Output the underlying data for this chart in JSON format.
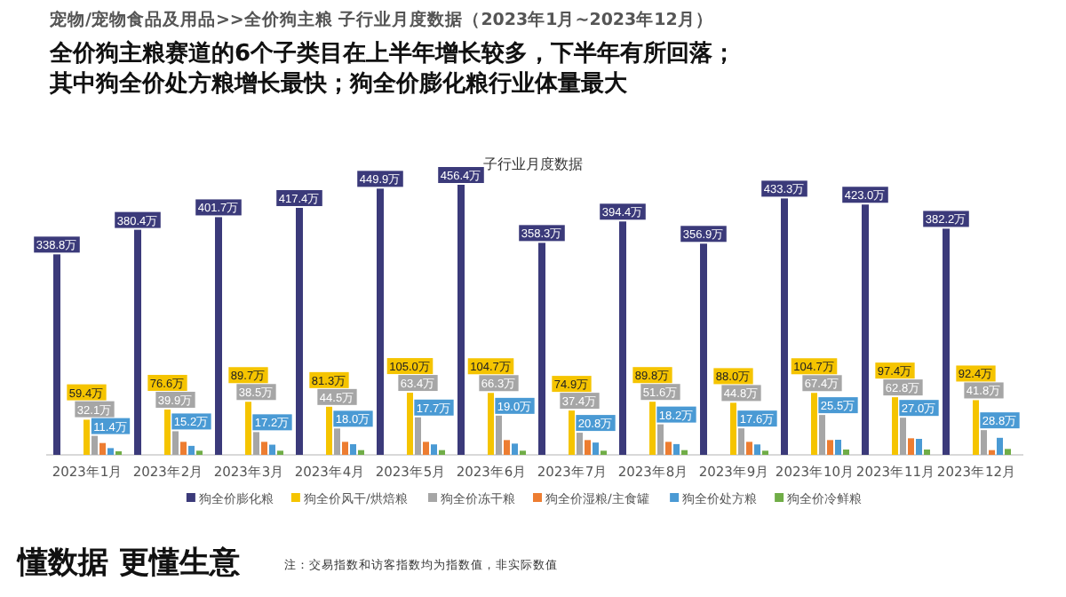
{
  "chart_data": {
    "type": "bar",
    "title": "全价狗主粮赛道的6个子类目在上半年增长较多，下半年有所回落；其中狗全价处方粮增长最快；狗全价膨化粮行业体量最大",
    "subtitle": "子行业月度数据",
    "annotations": [
      "宠物/宠物食品及用品>>全价狗主粮  子行业月度数据（2023年1月~2023年12月）",
      "懂数据 更懂生意",
      "注：交易指数和访客指数均为指数值，非实际数值"
    ],
    "categories": [
      "2023年1月",
      "2023年2月",
      "2023年3月",
      "2023年4月",
      "2023年5月",
      "2023年6月",
      "2023年7月",
      "2023年8月",
      "2023年9月",
      "2023年10月",
      "2023年11月",
      "2023年12月"
    ],
    "series": [
      {
        "name": "狗全价膨化粮",
        "color": "#3b3a7a",
        "values": [
          338.8,
          380.4,
          401.7,
          417.4,
          449.9,
          456.4,
          358.3,
          394.4,
          356.9,
          433.3,
          423.0,
          382.2
        ],
        "value_labels": [
          "338.8万",
          "380.4万",
          "401.7万",
          "417.4万",
          "449.9万",
          "456.4万",
          "358.3万",
          "394.4万",
          "356.9万",
          "433.3万",
          "423.0万",
          "382.2万"
        ]
      },
      {
        "name": "狗全价风干/烘焙粮",
        "color": "#f5c400",
        "values": [
          59.4,
          76.6,
          89.7,
          81.3,
          105.0,
          104.7,
          74.9,
          89.8,
          88.0,
          104.7,
          97.4,
          92.4
        ],
        "value_labels": [
          "59.4万",
          "76.6万",
          "89.7万",
          "81.3万",
          "105.0万",
          "104.7万",
          "74.9万",
          "89.8万",
          "88.0万",
          "104.7万",
          "97.4万",
          "92.4万"
        ]
      },
      {
        "name": "狗全价冻干粮",
        "color": "#a6a6a6",
        "values": [
          32.1,
          39.9,
          38.5,
          44.5,
          63.4,
          66.3,
          37.4,
          51.6,
          44.8,
          67.4,
          62.8,
          41.8
        ],
        "value_labels": [
          "32.1万",
          "39.9万",
          "38.5万",
          "44.5万",
          "63.4万",
          "66.3万",
          "37.4万",
          "51.6万",
          "44.8万",
          "67.4万",
          "62.8万",
          "41.8万"
        ]
      },
      {
        "name": "狗全价湿粮/主食罐",
        "color": "#ed7d31",
        "values": [
          20,
          22,
          22,
          22,
          22,
          25,
          25,
          22,
          22,
          25,
          28,
          8
        ]
      },
      {
        "name": "狗全价处方粮",
        "color": "#4a9ad4",
        "values": [
          11.4,
          15.2,
          17.2,
          18.0,
          17.7,
          19.0,
          20.8,
          18.2,
          17.6,
          25.5,
          27.0,
          28.8
        ],
        "value_labels": [
          "11.4万",
          "15.2万",
          "17.2万",
          "18.0万",
          "17.7万",
          "19.0万",
          "20.8万",
          "18.2万",
          "17.6万",
          "25.5万",
          "27.0万",
          "28.8万"
        ]
      },
      {
        "name": "狗全价冷鲜粮",
        "color": "#70ad47",
        "values": [
          6,
          7,
          7,
          8,
          8,
          7,
          7,
          8,
          7,
          9,
          9,
          10
        ]
      }
    ],
    "legend": "bottom"
  }
}
